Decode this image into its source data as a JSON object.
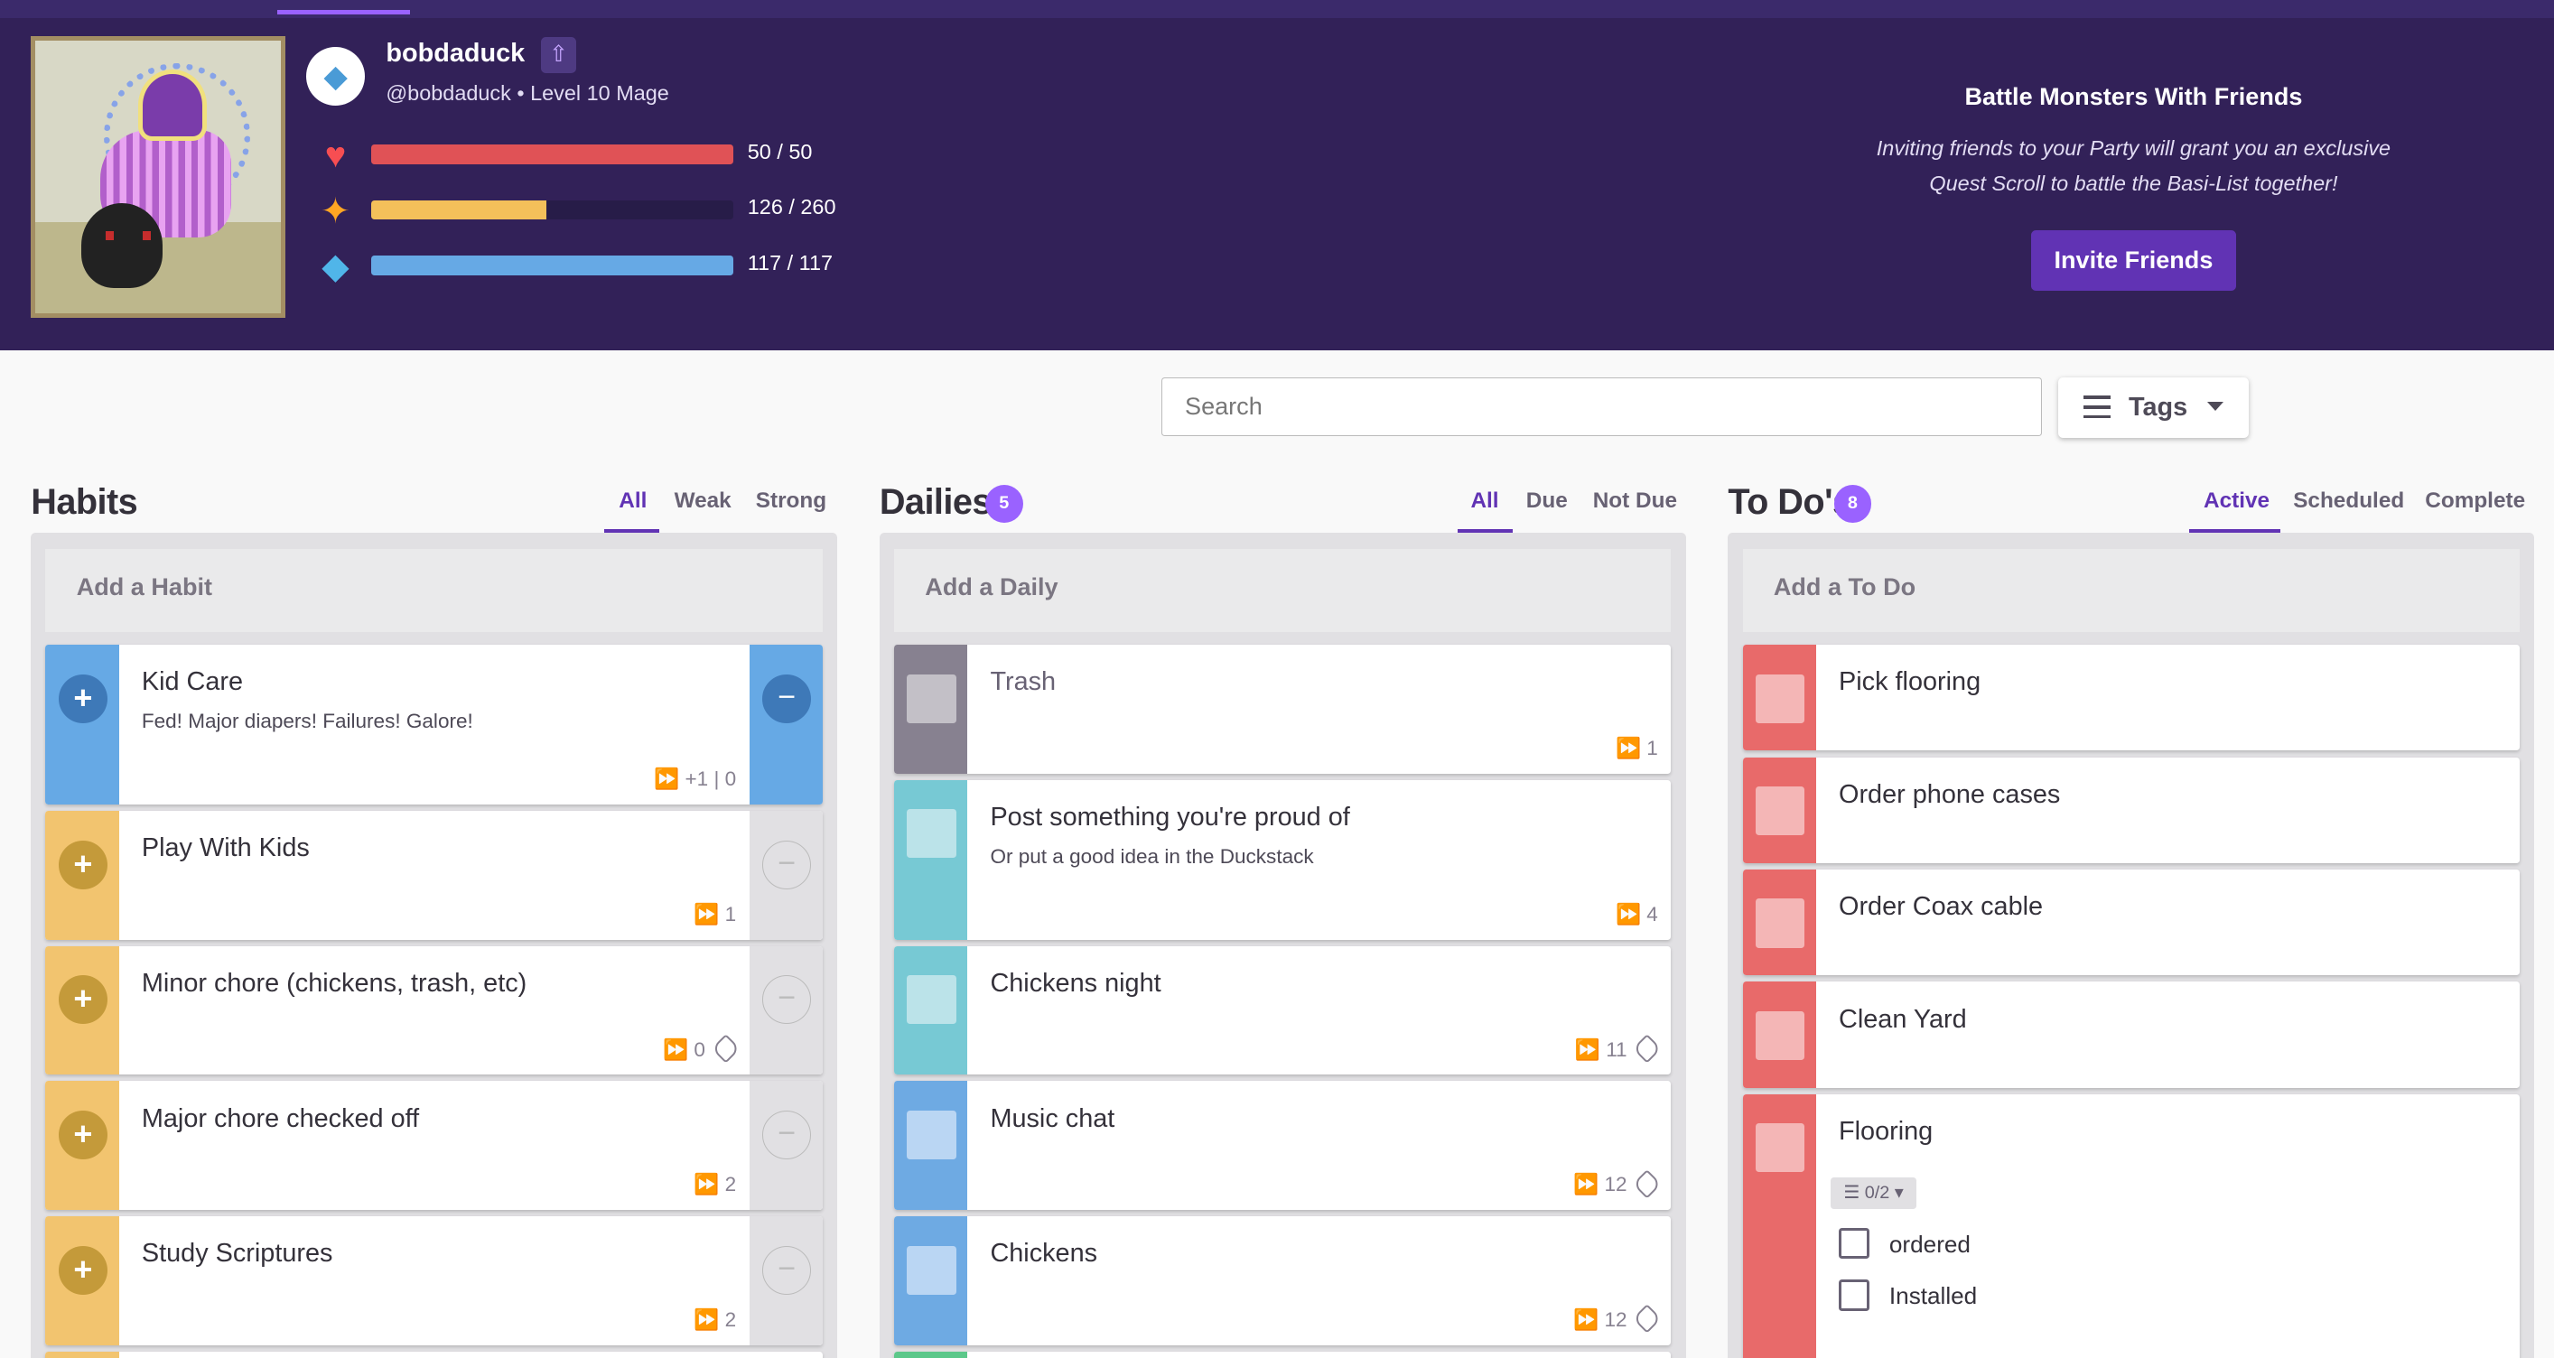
{
  "user": {
    "name": "bobdaduck",
    "handle_level": "@bobdaduck • Level 10 Mage"
  },
  "stats": [
    {
      "name": "health",
      "icon": "heart-icon",
      "glyph": "♥",
      "color": "#f74e52",
      "bar": "#e05256",
      "value": "50 / 50",
      "fraction": 1.0
    },
    {
      "name": "experience",
      "icon": "star-icon",
      "glyph": "✦",
      "color": "#ffa623",
      "bar": "#f4c05a",
      "value": "126 / 260",
      "fraction": 0.485
    },
    {
      "name": "mana",
      "icon": "mana-icon",
      "glyph": "◆",
      "color": "#50b5e9",
      "bar": "#66a9e5",
      "value": "117 / 117",
      "fraction": 1.0
    }
  ],
  "promo": {
    "title": "Battle Monsters With Friends",
    "line1": "Inviting friends to your Party will grant you an exclusive",
    "line2": "Quest Scroll to battle the Basi-List together!",
    "button": "Invite Friends"
  },
  "search": {
    "placeholder": "Search"
  },
  "tags_button": "Tags",
  "habits": {
    "title": "Habits",
    "filters": [
      "All",
      "Weak",
      "Strong"
    ],
    "add": "Add a Habit",
    "items": [
      {
        "title": "Kid Care",
        "notes": "Fed! Major diapers! Failures! Galore!",
        "meta": "⏩ +1 | 0"
      },
      {
        "title": "Play With Kids",
        "meta": "⏩ 1"
      },
      {
        "title": "Minor chore (chickens, trash, etc)",
        "meta": "⏩ 0"
      },
      {
        "title": "Major chore checked off",
        "meta": "⏩ 2"
      },
      {
        "title": "Study Scriptures",
        "meta": "⏩ 2"
      }
    ]
  },
  "dailies": {
    "title": "Dailies",
    "count": "5",
    "filters": [
      "All",
      "Due",
      "Not Due"
    ],
    "add": "Add a Daily",
    "items": [
      {
        "title": "Trash",
        "meta": "⏩ 1"
      },
      {
        "title": "Post something you're proud of",
        "notes": "Or put a good idea in the Duckstack",
        "meta": "⏩ 4"
      },
      {
        "title": "Chickens night",
        "meta": "⏩ 11"
      },
      {
        "title": "Music chat",
        "meta": "⏩ 12"
      },
      {
        "title": "Chickens",
        "meta": "⏩ 12"
      }
    ]
  },
  "todos": {
    "title": "To Do's",
    "count": "8",
    "filters": [
      "Active",
      "Scheduled",
      "Complete"
    ],
    "add": "Add a To Do",
    "items": [
      {
        "title": "Pick flooring"
      },
      {
        "title": "Order phone cases"
      },
      {
        "title": "Order Coax cable"
      },
      {
        "title": "Clean Yard"
      },
      {
        "title": "Flooring",
        "checklist_count": "0/2",
        "checklist": [
          "ordered",
          "Installed"
        ]
      }
    ]
  }
}
